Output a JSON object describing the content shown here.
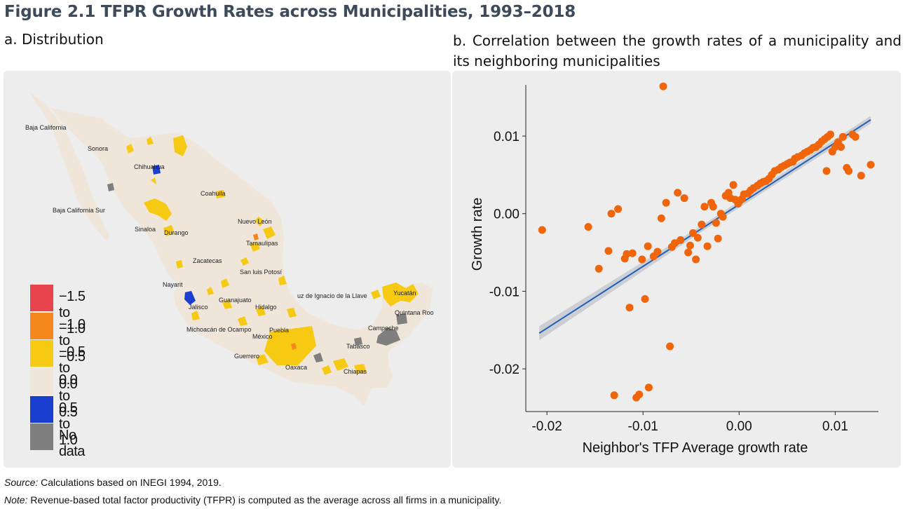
{
  "figure_title": "Figure 2.1 TFPR Growth Rates across Municipalities, 1993–2018",
  "panel_a": {
    "title": "a. Distribution",
    "legend": [
      {
        "label": "−1.5 to −1.0",
        "color": "#e8444e"
      },
      {
        "label": "−1.0 to −0.5",
        "color": "#f5871f"
      },
      {
        "label": "−0.5 to 0.0",
        "color": "#f6c912"
      },
      {
        "label": "0.0 to 0.5",
        "color": "#efe6d9"
      },
      {
        "label": "0.5 to 1.0",
        "color": "#1a3fd0"
      },
      {
        "label": "No data",
        "color": "#7f7f7f"
      }
    ],
    "state_labels": [
      {
        "id": "baja-california",
        "text": "Baja California"
      },
      {
        "id": "sonora",
        "text": "Sonora"
      },
      {
        "id": "chihuahua",
        "text": "Chihuahua"
      },
      {
        "id": "coahuila",
        "text": "Coahuila"
      },
      {
        "id": "baja-california-sur",
        "text": "Baja California Sur"
      },
      {
        "id": "nuevo-leon",
        "text": "Nuevo León"
      },
      {
        "id": "sinaloa",
        "text": "Sinaloa"
      },
      {
        "id": "durango",
        "text": "Durango"
      },
      {
        "id": "tamaulipas",
        "text": "Tamaulipas"
      },
      {
        "id": "zacatecas",
        "text": "Zacatecas"
      },
      {
        "id": "san-luis-potosi",
        "text": "San luis Potosí"
      },
      {
        "id": "nayarit",
        "text": "Nayarit"
      },
      {
        "id": "veracruz",
        "text": "uz de Ignacio de la Llave"
      },
      {
        "id": "yucatan",
        "text": "Yucatán"
      },
      {
        "id": "guanajuato",
        "text": "Guanajuato"
      },
      {
        "id": "jalisco",
        "text": "Jalisco"
      },
      {
        "id": "hidalgo",
        "text": "Hidalgo"
      },
      {
        "id": "quintana-roo",
        "text": "Quintana Roo"
      },
      {
        "id": "michoacan",
        "text": "Michoacán de Ocampo"
      },
      {
        "id": "puebla",
        "text": "Puebla"
      },
      {
        "id": "mexico",
        "text": "México"
      },
      {
        "id": "campeche",
        "text": "Campeche"
      },
      {
        "id": "tabasco",
        "text": "Tabasco"
      },
      {
        "id": "guerrero",
        "text": "Guerrero"
      },
      {
        "id": "oaxaca",
        "text": "Oaxaca"
      },
      {
        "id": "chiapas",
        "text": "Chiapas"
      }
    ]
  },
  "panel_b": {
    "title": "b. Correlation between the growth rates of a municipality and its neighboring municipalities"
  },
  "chart_data": {
    "type": "scatter",
    "xlabel": "Neighbor's TFP Average growth rate",
    "ylabel": "Growth rate",
    "xlim": [
      -0.0222,
      0.0145
    ],
    "ylim": [
      -0.0255,
      0.0166
    ],
    "x_ticks": [
      -0.02,
      -0.01,
      0.0,
      0.01
    ],
    "x_tick_labels": [
      "-0.02",
      "-0.01",
      "0.00",
      "0.01"
    ],
    "y_ticks": [
      -0.02,
      -0.01,
      0.0,
      0.01
    ],
    "y_tick_labels": [
      "-0.02",
      "-0.01",
      "0.00",
      "0.01"
    ],
    "point_color": "#f0640a",
    "fit_color": "#1f5fb8",
    "band_color": "#c4c8cf",
    "fit_line": {
      "x": [
        -0.0208,
        0.0137
      ],
      "y": [
        -0.0154,
        0.0121
      ]
    },
    "confidence_band": {
      "lower_start": -0.0163,
      "upper_start": -0.0145,
      "lower_end": 0.0116,
      "upper_end": 0.0126
    },
    "points": [
      [
        -0.0205,
        -0.0021
      ],
      [
        -0.0157,
        -0.0017
      ],
      [
        -0.0146,
        -0.0071
      ],
      [
        -0.0136,
        -0.0048
      ],
      [
        -0.0133,
        0.0
      ],
      [
        -0.013,
        -0.0234
      ],
      [
        -0.0126,
        0.0006
      ],
      [
        -0.0119,
        -0.0058
      ],
      [
        -0.0117,
        -0.0052
      ],
      [
        -0.0114,
        -0.0121
      ],
      [
        -0.0111,
        -0.0051
      ],
      [
        -0.0107,
        -0.0237
      ],
      [
        -0.0104,
        -0.0233
      ],
      [
        -0.0101,
        -0.0059
      ],
      [
        -0.0098,
        -0.011
      ],
      [
        -0.0095,
        -0.0042
      ],
      [
        -0.0094,
        -0.0224
      ],
      [
        -0.0089,
        -0.0055
      ],
      [
        -0.0085,
        -0.0049
      ],
      [
        -0.0081,
        -0.0006
      ],
      [
        -0.0079,
        0.0164
      ],
      [
        -0.0076,
        0.0014
      ],
      [
        -0.0072,
        -0.0171
      ],
      [
        -0.007,
        -0.0043
      ],
      [
        -0.0067,
        -0.0038
      ],
      [
        -0.0064,
        0.0027
      ],
      [
        -0.0061,
        -0.0034
      ],
      [
        -0.0057,
        0.002
      ],
      [
        -0.0053,
        -0.005
      ],
      [
        -0.0051,
        -0.0041
      ],
      [
        -0.0048,
        -0.0025
      ],
      [
        -0.0045,
        -0.0059
      ],
      [
        -0.0043,
        -0.0031
      ],
      [
        -0.0039,
        -0.0014
      ],
      [
        -0.0036,
        0.0009
      ],
      [
        -0.0033,
        -0.0042
      ],
      [
        -0.0029,
        0.0014
      ],
      [
        -0.0027,
        0.0009
      ],
      [
        -0.0024,
        -0.0012
      ],
      [
        -0.0022,
        -0.0032
      ],
      [
        -0.0019,
        0.0
      ],
      [
        -0.0017,
        -0.0004
      ],
      [
        -0.0014,
        0.0023
      ],
      [
        -0.0011,
        0.0027
      ],
      [
        -0.0009,
        0.002
      ],
      [
        -0.0006,
        0.0037
      ],
      [
        -0.0004,
        0.0018
      ],
      [
        -0.0001,
        0.0013
      ],
      [
        0.0003,
        0.0019
      ],
      [
        0.0005,
        0.0025
      ],
      [
        0.0009,
        0.0026
      ],
      [
        0.0012,
        0.003
      ],
      [
        0.0015,
        0.0033
      ],
      [
        0.0019,
        0.0036
      ],
      [
        0.0022,
        0.0039
      ],
      [
        0.0025,
        0.0041
      ],
      [
        0.0028,
        0.0042
      ],
      [
        0.0031,
        0.0045
      ],
      [
        0.0034,
        0.005
      ],
      [
        0.0037,
        0.0055
      ],
      [
        0.0041,
        0.0057
      ],
      [
        0.0044,
        0.006
      ],
      [
        0.0047,
        0.0062
      ],
      [
        0.005,
        0.0064
      ],
      [
        0.0053,
        0.0066
      ],
      [
        0.0056,
        0.0067
      ],
      [
        0.0058,
        0.0071
      ],
      [
        0.0061,
        0.0073
      ],
      [
        0.0065,
        0.0075
      ],
      [
        0.0068,
        0.0078
      ],
      [
        0.0071,
        0.008
      ],
      [
        0.0074,
        0.0082
      ],
      [
        0.0077,
        0.0085
      ],
      [
        0.008,
        0.0086
      ],
      [
        0.0083,
        0.0089
      ],
      [
        0.0086,
        0.0093
      ],
      [
        0.0089,
        0.0096
      ],
      [
        0.0092,
        0.0099
      ],
      [
        0.0095,
        0.0102
      ],
      [
        0.0091,
        0.0055
      ],
      [
        0.0097,
        0.008
      ],
      [
        0.01,
        0.0086
      ],
      [
        0.0103,
        0.0092
      ],
      [
        0.0106,
        0.0086
      ],
      [
        0.0108,
        0.0099
      ],
      [
        0.0112,
        0.0059
      ],
      [
        0.0114,
        0.0055
      ],
      [
        0.0118,
        0.0102
      ],
      [
        0.0121,
        0.0099
      ],
      [
        0.0127,
        0.0049
      ],
      [
        0.0137,
        0.0063
      ]
    ]
  },
  "source": {
    "label": "Source:",
    "text": "Calculations based on INEGI 1994, 2019."
  },
  "note": {
    "label": "Note:",
    "text": "Revenue-based total factor productivity (TFPR) is computed as the average across all firms in a municipality."
  }
}
